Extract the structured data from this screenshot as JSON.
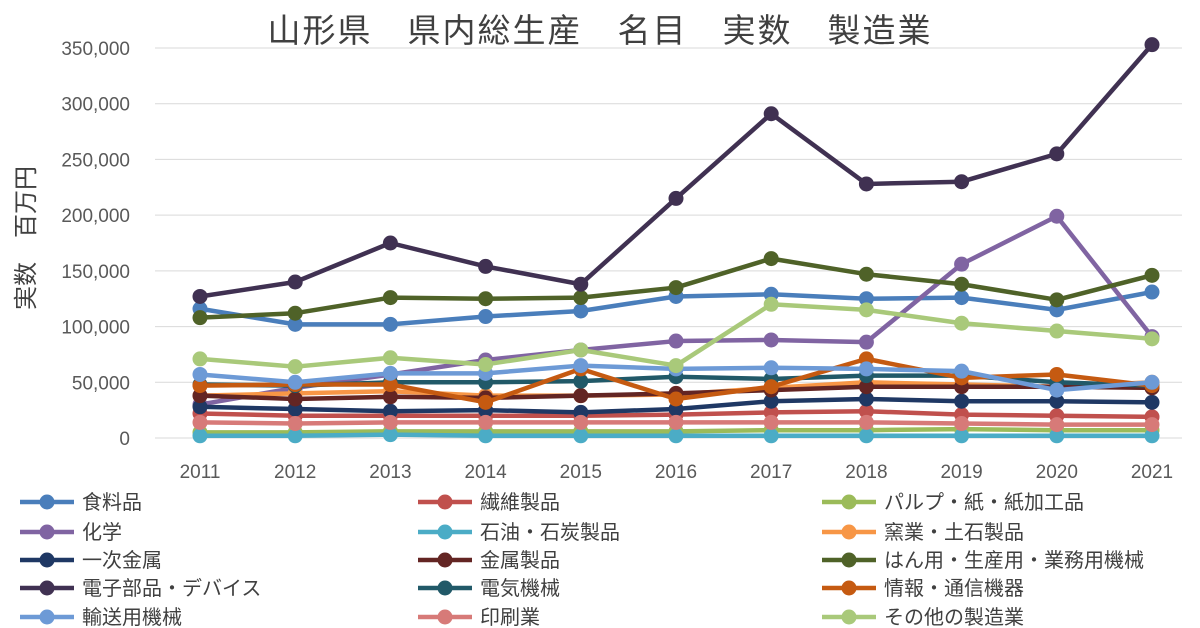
{
  "chart_data": {
    "type": "line",
    "title": "山形県　県内総生産　名目　実数　製造業",
    "ylabel": "実数　百万円",
    "xlabel": "",
    "ylim": [
      0,
      350000
    ],
    "yticks": [
      0,
      50000,
      100000,
      150000,
      200000,
      250000,
      300000,
      350000
    ],
    "ytick_labels": [
      "0",
      "50,000",
      "100,000",
      "150,000",
      "200,000",
      "250,000",
      "300,000",
      "350,000"
    ],
    "categories": [
      "2011",
      "2012",
      "2013",
      "2014",
      "2015",
      "2016",
      "2017",
      "2018",
      "2019",
      "2020",
      "2021"
    ],
    "grid": true,
    "legend_position": "bottom",
    "series": [
      {
        "name": "食料品",
        "color": "#4a7ebb",
        "values": [
          116000,
          102000,
          102000,
          109000,
          114000,
          127000,
          129000,
          125000,
          126000,
          115000,
          131000
        ]
      },
      {
        "name": "繊維製品",
        "color": "#c0504d",
        "values": [
          22000,
          20000,
          20000,
          20000,
          20000,
          21000,
          23000,
          24000,
          21000,
          20000,
          19000
        ]
      },
      {
        "name": "パルプ・紙・紙加工品",
        "color": "#9bbb59",
        "values": [
          5000,
          5000,
          6000,
          6000,
          6000,
          6000,
          7000,
          7000,
          8000,
          7000,
          7000
        ]
      },
      {
        "name": "化学",
        "color": "#8064a2",
        "values": [
          30000,
          45000,
          57000,
          70000,
          79000,
          87000,
          88000,
          86000,
          156000,
          199000,
          91000
        ]
      },
      {
        "name": "石油・石炭製品",
        "color": "#4bacc6",
        "values": [
          2000,
          2000,
          3000,
          2000,
          2000,
          2000,
          2000,
          2000,
          2000,
          2000,
          2000
        ]
      },
      {
        "name": "窯業・土石製品",
        "color": "#f79646",
        "values": [
          38000,
          40000,
          42000,
          38000,
          38000,
          39000,
          45000,
          50000,
          48000,
          46000,
          50000
        ]
      },
      {
        "name": "一次金属",
        "color": "#1f3864",
        "values": [
          28000,
          26000,
          24000,
          25000,
          23000,
          26000,
          33000,
          35000,
          33000,
          33000,
          32000
        ]
      },
      {
        "name": "金属製品",
        "color": "#632523",
        "values": [
          38000,
          35000,
          37000,
          36000,
          38000,
          40000,
          43000,
          46000,
          46000,
          46000,
          45000
        ]
      },
      {
        "name": "はん用・生産用・業務用機械",
        "color": "#4f6228",
        "values": [
          108000,
          112000,
          126000,
          125000,
          126000,
          135000,
          161000,
          147000,
          138000,
          124000,
          146000
        ]
      },
      {
        "name": "電子部品・デバイス",
        "color": "#403152",
        "values": [
          127000,
          140000,
          175000,
          154000,
          138000,
          215000,
          291000,
          228000,
          230000,
          255000,
          353000
        ]
      },
      {
        "name": "電気機械",
        "color": "#215968",
        "values": [
          48000,
          47000,
          50000,
          50000,
          51000,
          55000,
          53000,
          56000,
          56000,
          50000,
          47000
        ]
      },
      {
        "name": "情報・通信機器",
        "color": "#c55a11",
        "values": [
          47000,
          48000,
          48000,
          32000,
          62000,
          35000,
          46000,
          71000,
          54000,
          57000,
          47000
        ]
      },
      {
        "name": "輸送用機械",
        "color": "#6d9ad6",
        "values": [
          57000,
          50000,
          58000,
          58000,
          65000,
          62000,
          63000,
          62000,
          60000,
          43000,
          50000
        ]
      },
      {
        "name": "印刷業",
        "color": "#d77a78",
        "values": [
          14000,
          13000,
          14000,
          14000,
          14000,
          14000,
          14000,
          14000,
          13000,
          12000,
          12000
        ]
      },
      {
        "name": "その他の製造業",
        "color": "#a9c97a",
        "values": [
          71000,
          64000,
          72000,
          66000,
          79000,
          65000,
          120000,
          115000,
          103000,
          96000,
          89000
        ]
      }
    ]
  }
}
